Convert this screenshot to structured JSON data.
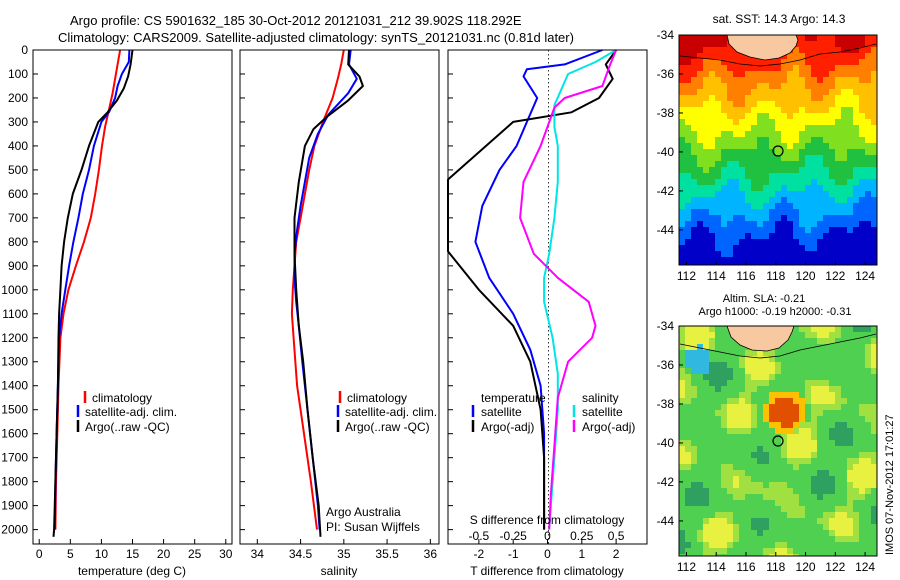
{
  "title": {
    "line1": "Argo profile: CS 5901632_185 30-Oct-2012 20121031_212 39.902S 118.292E",
    "line2": "Climatology: CARS2009. Satellite-adjusted climatology: synTS_20121031.nc (0.81d later)"
  },
  "side_label": "IMOS 07-Nov-2012 17:01:27",
  "colors": {
    "climatology": "#ff0000",
    "satellite": "#0000ff",
    "argo": "#000000",
    "satellite_s": "#00e5e5",
    "argo_s": "#ff00ff"
  },
  "chart_data": [
    {
      "type": "line",
      "name": "temperature-panel",
      "xlabel": "temperature (deg C)",
      "ylabel": "",
      "xlim": [
        -1,
        31
      ],
      "ylim": [
        0,
        2060
      ],
      "xticks": [
        "0",
        "5",
        "10",
        "15",
        "20",
        "25",
        "30"
      ],
      "yticks": [
        "0",
        "100",
        "200",
        "300",
        "400",
        "500",
        "600",
        "700",
        "800",
        "900",
        "1000",
        "1100",
        "1200",
        "1300",
        "1400",
        "1500",
        "1600",
        "1700",
        "1800",
        "1900",
        "2000"
      ],
      "legend": [
        "climatology",
        "satellite-adj. clim.",
        "Argo(..raw -QC)"
      ],
      "series": [
        {
          "name": "climatology",
          "color": "#ff0000",
          "points": [
            [
              13,
              0
            ],
            [
              12.6,
              60
            ],
            [
              12.2,
              120
            ],
            [
              11.8,
              180
            ],
            [
              11.2,
              250
            ],
            [
              10.6,
              320
            ],
            [
              10.1,
              400
            ],
            [
              9.6,
              500
            ],
            [
              9.0,
              600
            ],
            [
              8.3,
              700
            ],
            [
              7.2,
              800
            ],
            [
              5.9,
              900
            ],
            [
              4.7,
              1000
            ],
            [
              3.9,
              1100
            ],
            [
              3.4,
              1200
            ],
            [
              3.1,
              1400
            ],
            [
              2.9,
              1600
            ],
            [
              2.7,
              1800
            ],
            [
              2.6,
              2000
            ]
          ]
        },
        {
          "name": "satellite-adj. clim.",
          "color": "#0000ff",
          "points": [
            [
              14.5,
              0
            ],
            [
              14.4,
              50
            ],
            [
              13.3,
              100
            ],
            [
              12.6,
              150
            ],
            [
              12.2,
              200
            ],
            [
              11.2,
              260
            ],
            [
              10.0,
              300
            ],
            [
              8.8,
              400
            ],
            [
              8.0,
              500
            ],
            [
              7.0,
              600
            ],
            [
              6.3,
              700
            ],
            [
              5.5,
              800
            ],
            [
              4.8,
              900
            ],
            [
              4.2,
              1000
            ],
            [
              3.6,
              1100
            ],
            [
              3.2,
              1200
            ],
            [
              3.0,
              1400
            ],
            [
              2.8,
              1600
            ],
            [
              2.6,
              1800
            ],
            [
              2.5,
              2000
            ]
          ]
        },
        {
          "name": "Argo(..raw -QC)",
          "color": "#000000",
          "points": [
            [
              15,
              0
            ],
            [
              14.7,
              60
            ],
            [
              14.3,
              110
            ],
            [
              13.6,
              160
            ],
            [
              12.5,
              210
            ],
            [
              11.0,
              260
            ],
            [
              9.5,
              300
            ],
            [
              8.0,
              400
            ],
            [
              6.8,
              500
            ],
            [
              5.4,
              600
            ],
            [
              4.6,
              700
            ],
            [
              4.0,
              800
            ],
            [
              3.6,
              900
            ],
            [
              3.4,
              1000
            ],
            [
              3.2,
              1100
            ],
            [
              3.1,
              1200
            ],
            [
              3.0,
              1400
            ],
            [
              2.8,
              1600
            ],
            [
              2.6,
              1800
            ],
            [
              2.4,
              2000
            ],
            [
              2.3,
              2030
            ]
          ]
        }
      ]
    },
    {
      "type": "line",
      "name": "salinity-panel",
      "xlabel": "salinity",
      "ylabel": "",
      "xlim": [
        33.8,
        36.1
      ],
      "ylim": [
        0,
        2060
      ],
      "xticks": [
        "34",
        "34.5",
        "35",
        "35.5",
        "36"
      ],
      "legend": [
        "climatology",
        "satellite-adj. clim.",
        "Argo(..raw -QC)"
      ],
      "annotation": [
        "Argo Australia",
        "PI: Susan Wijffels"
      ],
      "series": [
        {
          "name": "climatology",
          "color": "#ff0000",
          "points": [
            [
              35.0,
              0
            ],
            [
              34.97,
              60
            ],
            [
              34.93,
              120
            ],
            [
              34.87,
              200
            ],
            [
              34.77,
              290
            ],
            [
              34.66,
              400
            ],
            [
              34.6,
              500
            ],
            [
              34.55,
              600
            ],
            [
              34.5,
              700
            ],
            [
              34.45,
              800
            ],
            [
              34.43,
              900
            ],
            [
              34.41,
              1000
            ],
            [
              34.4,
              1100
            ],
            [
              34.42,
              1200
            ],
            [
              34.46,
              1400
            ],
            [
              34.54,
              1600
            ],
            [
              34.62,
              1800
            ],
            [
              34.69,
              2000
            ]
          ]
        },
        {
          "name": "satellite-adj. clim.",
          "color": "#0000ff",
          "points": [
            [
              35.08,
              0
            ],
            [
              35.06,
              60
            ],
            [
              35.15,
              120
            ],
            [
              35.05,
              180
            ],
            [
              34.82,
              270
            ],
            [
              34.7,
              350
            ],
            [
              34.6,
              450
            ],
            [
              34.55,
              550
            ],
            [
              34.5,
              650
            ],
            [
              34.46,
              750
            ],
            [
              34.43,
              850
            ],
            [
              34.43,
              950
            ],
            [
              34.45,
              1050
            ],
            [
              34.48,
              1150
            ],
            [
              34.52,
              1300
            ],
            [
              34.58,
              1500
            ],
            [
              34.64,
              1700
            ],
            [
              34.7,
              1900
            ],
            [
              34.72,
              2000
            ]
          ]
        },
        {
          "name": "Argo(..raw -QC)",
          "color": "#000000",
          "points": [
            [
              35.06,
              0
            ],
            [
              35.05,
              60
            ],
            [
              35.18,
              110
            ],
            [
              35.22,
              150
            ],
            [
              35.05,
              210
            ],
            [
              34.8,
              280
            ],
            [
              34.65,
              330
            ],
            [
              34.55,
              400
            ],
            [
              34.48,
              550
            ],
            [
              34.43,
              700
            ],
            [
              34.43,
              850
            ],
            [
              34.45,
              1000
            ],
            [
              34.48,
              1150
            ],
            [
              34.53,
              1300
            ],
            [
              34.58,
              1500
            ],
            [
              34.64,
              1700
            ],
            [
              34.71,
              1900
            ],
            [
              34.73,
              2030
            ]
          ]
        }
      ]
    },
    {
      "type": "line",
      "name": "difference-panel",
      "xlabel": "T difference from climatology",
      "xlabel2": "S difference from climatology",
      "xlim": [
        -2.9,
        2.9
      ],
      "ylim": [
        0,
        2060
      ],
      "xticks": [
        "-2",
        "-1",
        "0",
        "1",
        "2"
      ],
      "xticks2": [
        "-0.5",
        "-0.25",
        "0",
        "0.25",
        "0.5"
      ],
      "legend_left": {
        "header": "temperature",
        "items": [
          "satellite",
          "Argo(-adj)"
        ]
      },
      "legend_right": {
        "header": "salinity",
        "items": [
          "satellite",
          "Argo(-adj)"
        ]
      },
      "series": [
        {
          "name": "temperature satellite",
          "color": "#0000ff",
          "points": [
            [
              1.6,
              0
            ],
            [
              0.5,
              60
            ],
            [
              -0.6,
              80
            ],
            [
              -0.7,
              110
            ],
            [
              -0.3,
              200
            ],
            [
              -0.6,
              300
            ],
            [
              -0.9,
              400
            ],
            [
              -1.4,
              500
            ],
            [
              -1.9,
              650
            ],
            [
              -2.1,
              800
            ],
            [
              -1.7,
              950
            ],
            [
              -1.0,
              1100
            ],
            [
              -0.5,
              1250
            ],
            [
              -0.2,
              1400
            ],
            [
              -0.1,
              1600
            ],
            [
              -0.1,
              2000
            ]
          ]
        },
        {
          "name": "temperature Argo(-adj)",
          "color": "#000000",
          "points": [
            [
              2.0,
              0
            ],
            [
              1.7,
              60
            ],
            [
              1.9,
              120
            ],
            [
              1.5,
              200
            ],
            [
              0.7,
              260
            ],
            [
              -1.0,
              300
            ],
            [
              -2.9,
              540
            ],
            [
              -2.9,
              840
            ],
            [
              -2.0,
              1000
            ],
            [
              -1.0,
              1150
            ],
            [
              -0.5,
              1300
            ],
            [
              -0.2,
              1500
            ],
            [
              -0.1,
              1700
            ],
            [
              -0.1,
              2000
            ]
          ]
        },
        {
          "name": "salinity satellite",
          "color": "#00e5e5",
          "points": [
            [
              2.0,
              0
            ],
            [
              1.4,
              50
            ],
            [
              0.6,
              100
            ],
            [
              0.2,
              230
            ],
            [
              0.2,
              320
            ],
            [
              0.3,
              400
            ],
            [
              0.3,
              550
            ],
            [
              0.2,
              700
            ],
            [
              0.05,
              850
            ],
            [
              -0.1,
              950
            ],
            [
              -0.1,
              1050
            ],
            [
              0.15,
              1200
            ],
            [
              0.3,
              1350
            ],
            [
              0.3,
              1500
            ],
            [
              0.2,
              1700
            ],
            [
              0.1,
              1900
            ],
            [
              0.05,
              2000
            ]
          ]
        },
        {
          "name": "salinity Argo(-adj)",
          "color": "#ff00ff",
          "points": [
            [
              2.0,
              0
            ],
            [
              1.8,
              70
            ],
            [
              1.6,
              150
            ],
            [
              0.5,
              200
            ],
            [
              0.2,
              240
            ],
            [
              -0.2,
              400
            ],
            [
              -0.7,
              550
            ],
            [
              -0.8,
              700
            ],
            [
              -0.4,
              850
            ],
            [
              0.3,
              950
            ],
            [
              1.2,
              1050
            ],
            [
              1.4,
              1150
            ],
            [
              1.3,
              1200
            ],
            [
              0.6,
              1300
            ],
            [
              0.3,
              1450
            ],
            [
              0.2,
              1650
            ],
            [
              0.1,
              1850
            ],
            [
              0.05,
              2000
            ]
          ]
        }
      ]
    },
    {
      "type": "heatmap",
      "name": "sst-map",
      "title": "sat. SST: 14.3  Argo: 14.3",
      "xlim": [
        111.5,
        124.8
      ],
      "ylim": [
        -45.8,
        -34
      ],
      "xticks": [
        "112",
        "114",
        "116",
        "118",
        "120",
        "122",
        "124"
      ],
      "yticks": [
        "-34",
        "-36",
        "-38",
        "-40",
        "-42",
        "-44"
      ],
      "marker": {
        "lon": 118.3,
        "lat": -39.9
      },
      "color_scale": [
        "#0000c8",
        "#0064ff",
        "#00b4ff",
        "#00e0a0",
        "#20c040",
        "#80e020",
        "#ffff00",
        "#ffc000",
        "#ff8000",
        "#ff2000",
        "#c80000"
      ]
    },
    {
      "type": "heatmap",
      "name": "sla-map",
      "title": "Altim. SLA: -0.21",
      "subtitle": "Argo h1000: -0.19 h2000: -0.31",
      "xlim": [
        111.5,
        124.8
      ],
      "ylim": [
        -45.8,
        -34
      ],
      "xticks": [
        "112",
        "114",
        "116",
        "118",
        "120",
        "122",
        "124"
      ],
      "yticks": [
        "-34",
        "-36",
        "-38",
        "-40",
        "-42",
        "-44"
      ],
      "marker": {
        "lon": 118.3,
        "lat": -39.9
      }
    }
  ]
}
